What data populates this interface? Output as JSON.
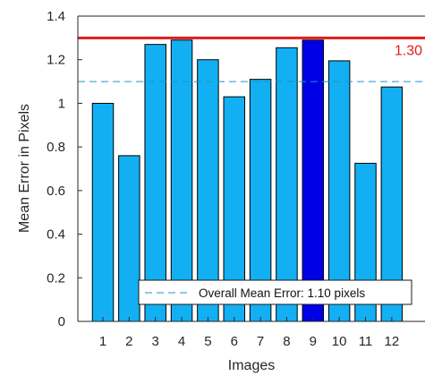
{
  "chart_data": {
    "type": "bar",
    "title": "",
    "xlabel": "Images",
    "ylabel": "Mean Error in Pixels",
    "categories": [
      "1",
      "2",
      "3",
      "4",
      "5",
      "6",
      "7",
      "8",
      "9",
      "10",
      "11",
      "12"
    ],
    "values": [
      1.0,
      0.76,
      1.27,
      1.29,
      1.2,
      1.03,
      1.11,
      1.255,
      1.29,
      1.195,
      0.725,
      1.075
    ],
    "ylim": [
      0,
      1.4
    ],
    "yticks": [
      "0",
      "0.2",
      "0.4",
      "0.6",
      "0.8",
      "1",
      "1.2",
      "1.4"
    ],
    "highlight_index": 8,
    "threshold": {
      "value": 1.3,
      "label": "1.30"
    },
    "mean_line": {
      "value": 1.1
    },
    "legend": {
      "label": "Overall Mean Error: 1.10 pixels",
      "placement": "bottom-right"
    },
    "grid": false,
    "colors": {
      "bar": "#12b0f2",
      "bar_highlight": "#0000e6",
      "bar_edge": "#000000",
      "threshold": "#e21b1b",
      "mean_line": "#1f94c5",
      "axis": "#262626"
    }
  }
}
